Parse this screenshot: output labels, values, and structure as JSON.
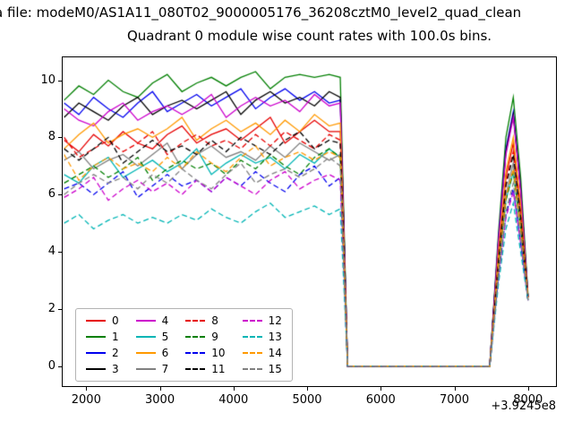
{
  "figure": {
    "suptitle": "a file: modeM0/AS1A11_080T02_9000005176_36208cztM0_level2_quad_clean",
    "title": "Quadrant 0 module wise count rates with 100.0s bins.",
    "x_offset_label": "+3.9245e8"
  },
  "axes": {
    "xlim": [
      1680,
      8380
    ],
    "ylim": [
      -0.7,
      10.8
    ],
    "xticks": [
      2000,
      3000,
      4000,
      5000,
      6000,
      7000,
      8000
    ],
    "yticks": [
      0,
      2,
      4,
      6,
      8,
      10
    ]
  },
  "chart_data": {
    "type": "line",
    "title": "Quadrant 0 module wise count rates with 100.0s bins.",
    "xlabel": "",
    "ylabel": "",
    "x_offset": "+3.9245e8",
    "xlim": [
      1680,
      8380
    ],
    "ylim": [
      -0.7,
      10.8
    ],
    "grid": false,
    "legend_position": "lower left",
    "legend_columns": 4,
    "x": [
      1700,
      1900,
      2100,
      2300,
      2500,
      2700,
      2900,
      3100,
      3300,
      3500,
      3700,
      3900,
      4100,
      4300,
      4500,
      4700,
      4900,
      5100,
      5300,
      5450,
      5550,
      5700,
      5900,
      6100,
      6300,
      6500,
      6700,
      6900,
      7100,
      7300,
      7480,
      7600,
      7700,
      7800,
      7900,
      8000
    ],
    "series": [
      {
        "name": "0",
        "color": "#e60000",
        "dash": false,
        "values": [
          7.9,
          7.5,
          8.1,
          7.7,
          8.2,
          7.8,
          7.6,
          8.1,
          8.4,
          7.8,
          8.1,
          8.3,
          7.9,
          8.3,
          8.7,
          7.8,
          8.2,
          8.6,
          8.2,
          8.2,
          0,
          0,
          0,
          0,
          0,
          0,
          0,
          0,
          0,
          0,
          0,
          3.9,
          6.6,
          7.8,
          5.5,
          2.4
        ]
      },
      {
        "name": "1",
        "color": "#007f00",
        "dash": false,
        "values": [
          9.3,
          9.8,
          9.5,
          10.0,
          9.6,
          9.4,
          9.9,
          10.2,
          9.6,
          9.9,
          10.1,
          9.8,
          10.1,
          10.3,
          9.7,
          10.1,
          10.2,
          10.1,
          10.2,
          10.1,
          0,
          0,
          0,
          0,
          0,
          0,
          0,
          0,
          0,
          0,
          0,
          4.7,
          8.0,
          9.4,
          6.6,
          2.5
        ]
      },
      {
        "name": "2",
        "color": "#0000ee",
        "dash": false,
        "values": [
          9.2,
          8.8,
          9.4,
          9.0,
          8.7,
          9.2,
          9.6,
          8.9,
          9.2,
          9.5,
          9.1,
          9.4,
          9.7,
          9.0,
          9.4,
          9.7,
          9.3,
          9.6,
          9.2,
          9.3,
          0,
          0,
          0,
          0,
          0,
          0,
          0,
          0,
          0,
          0,
          0,
          4.5,
          7.6,
          8.9,
          6.2,
          2.4
        ]
      },
      {
        "name": "3",
        "color": "#000000",
        "dash": false,
        "values": [
          8.7,
          9.2,
          8.9,
          8.6,
          9.1,
          9.4,
          8.8,
          9.1,
          9.3,
          9.0,
          9.3,
          9.6,
          8.8,
          9.3,
          9.6,
          9.2,
          9.4,
          9.1,
          9.6,
          9.4,
          0,
          0,
          0,
          0,
          0,
          0,
          0,
          0,
          0,
          0,
          0,
          4.4,
          7.5,
          8.8,
          6.2,
          2.4
        ]
      },
      {
        "name": "4",
        "color": "#cc00cc",
        "dash": false,
        "values": [
          9.0,
          8.6,
          8.4,
          8.9,
          9.2,
          8.6,
          8.9,
          9.1,
          8.8,
          9.1,
          9.5,
          8.7,
          9.1,
          9.4,
          9.1,
          9.3,
          8.9,
          9.5,
          9.1,
          9.2,
          0,
          0,
          0,
          0,
          0,
          0,
          0,
          0,
          0,
          0,
          0,
          4.4,
          7.4,
          8.7,
          6.1,
          2.4
        ]
      },
      {
        "name": "5",
        "color": "#00b5b5",
        "dash": false,
        "values": [
          6.7,
          6.4,
          7.0,
          7.3,
          6.6,
          6.9,
          7.2,
          6.8,
          7.1,
          7.6,
          6.7,
          7.1,
          7.4,
          7.1,
          7.3,
          6.9,
          7.4,
          7.1,
          7.6,
          7.3,
          0,
          0,
          0,
          0,
          0,
          0,
          0,
          0,
          0,
          0,
          0,
          3.4,
          5.8,
          6.8,
          4.8,
          2.3
        ]
      },
      {
        "name": "6",
        "color": "#ff9900",
        "dash": false,
        "values": [
          7.6,
          8.1,
          8.5,
          7.8,
          8.1,
          8.3,
          8.0,
          8.3,
          8.7,
          7.9,
          8.3,
          8.6,
          8.2,
          8.5,
          8.1,
          8.6,
          8.2,
          8.8,
          8.4,
          8.5,
          0,
          0,
          0,
          0,
          0,
          0,
          0,
          0,
          0,
          0,
          0,
          4.0,
          6.8,
          8.0,
          5.6,
          2.4
        ]
      },
      {
        "name": "7",
        "color": "#808080",
        "dash": false,
        "values": [
          7.2,
          7.5,
          6.9,
          7.2,
          7.4,
          7.0,
          7.4,
          7.8,
          6.9,
          7.4,
          7.7,
          7.3,
          7.5,
          7.2,
          7.7,
          7.3,
          7.8,
          7.5,
          7.2,
          7.4,
          0,
          0,
          0,
          0,
          0,
          0,
          0,
          0,
          0,
          0,
          0,
          3.6,
          6.0,
          7.1,
          5.0,
          2.4
        ]
      },
      {
        "name": "8",
        "color": "#e60000",
        "dash": true,
        "values": [
          8.0,
          7.3,
          7.6,
          7.9,
          7.5,
          7.8,
          8.2,
          7.4,
          7.8,
          8.1,
          7.7,
          7.9,
          7.6,
          8.1,
          7.7,
          8.2,
          7.9,
          7.6,
          8.1,
          7.9,
          0,
          0,
          0,
          0,
          0,
          0,
          0,
          0,
          0,
          0,
          0,
          3.8,
          6.4,
          7.5,
          5.3,
          2.4
        ]
      },
      {
        "name": "9",
        "color": "#007f00",
        "dash": true,
        "values": [
          6.4,
          6.7,
          7.0,
          6.6,
          6.9,
          7.3,
          6.5,
          6.9,
          7.2,
          6.9,
          7.1,
          6.7,
          7.2,
          6.9,
          7.4,
          7.0,
          6.7,
          7.3,
          7.6,
          7.3,
          0,
          0,
          0,
          0,
          0,
          0,
          0,
          0,
          0,
          0,
          0,
          3.4,
          5.8,
          6.8,
          4.8,
          2.3
        ]
      },
      {
        "name": "10",
        "color": "#0000ee",
        "dash": true,
        "values": [
          6.2,
          6.4,
          6.0,
          6.4,
          6.8,
          5.9,
          6.3,
          6.7,
          6.3,
          6.5,
          6.1,
          6.6,
          6.3,
          6.8,
          6.4,
          6.1,
          6.7,
          7.0,
          6.3,
          6.6,
          0,
          0,
          0,
          0,
          0,
          0,
          0,
          0,
          0,
          0,
          0,
          3.1,
          5.3,
          6.2,
          4.3,
          2.3
        ]
      },
      {
        "name": "11",
        "color": "#000000",
        "dash": true,
        "values": [
          7.6,
          7.2,
          7.6,
          8.0,
          7.1,
          7.5,
          7.9,
          7.5,
          7.7,
          7.4,
          7.9,
          7.5,
          8.0,
          7.7,
          7.4,
          7.9,
          8.2,
          7.6,
          7.9,
          7.8,
          0,
          0,
          0,
          0,
          0,
          0,
          0,
          0,
          0,
          0,
          0,
          3.7,
          6.3,
          7.4,
          5.2,
          2.4
        ]
      },
      {
        "name": "12",
        "color": "#cc00cc",
        "dash": true,
        "values": [
          5.9,
          6.2,
          6.6,
          5.8,
          6.2,
          6.5,
          6.1,
          6.4,
          6.0,
          6.5,
          6.1,
          6.6,
          6.3,
          6.0,
          6.5,
          6.8,
          6.2,
          6.5,
          6.7,
          6.5,
          0,
          0,
          0,
          0,
          0,
          0,
          0,
          0,
          0,
          0,
          0,
          3.1,
          5.2,
          6.1,
          4.3,
          2.3
        ]
      },
      {
        "name": "13",
        "color": "#00b5b5",
        "dash": true,
        "values": [
          5.0,
          5.3,
          4.8,
          5.1,
          5.3,
          5.0,
          5.2,
          5.0,
          5.3,
          5.1,
          5.5,
          5.2,
          5.0,
          5.4,
          5.7,
          5.2,
          5.4,
          5.6,
          5.3,
          5.5,
          0,
          0,
          0,
          0,
          0,
          0,
          0,
          0,
          0,
          0,
          0,
          2.9,
          4.8,
          5.7,
          4.0,
          2.3
        ]
      },
      {
        "name": "14",
        "color": "#ff9900",
        "dash": true,
        "values": [
          7.4,
          6.5,
          7.0,
          7.3,
          6.9,
          7.1,
          6.8,
          7.3,
          6.9,
          7.5,
          7.1,
          6.8,
          7.3,
          7.7,
          7.0,
          7.3,
          7.5,
          7.2,
          7.5,
          7.3,
          0,
          0,
          0,
          0,
          0,
          0,
          0,
          0,
          0,
          0,
          0,
          3.5,
          5.9,
          6.9,
          4.8,
          2.4
        ]
      },
      {
        "name": "15",
        "color": "#808080",
        "dash": true,
        "values": [
          6.0,
          6.4,
          6.7,
          6.4,
          6.6,
          6.2,
          6.7,
          6.4,
          6.9,
          6.5,
          6.2,
          6.7,
          7.1,
          6.4,
          6.7,
          6.9,
          6.6,
          6.9,
          7.3,
          7.0,
          0,
          0,
          0,
          0,
          0,
          0,
          0,
          0,
          0,
          0,
          0,
          3.2,
          5.4,
          6.4,
          4.5,
          2.3
        ]
      }
    ]
  }
}
